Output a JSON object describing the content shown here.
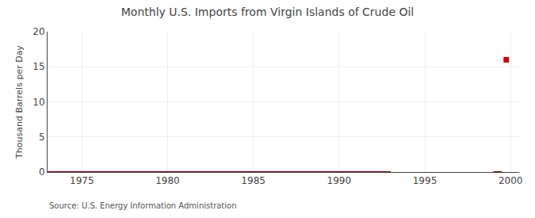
{
  "chart_data": {
    "type": "line",
    "title": "Monthly U.S. Imports from Virgin Islands of Crude Oil",
    "ylabel": "Thousand Barrels per Day",
    "annotations": [
      "Source: U.S. Energy Information Administration"
    ],
    "series": [
      {
        "x": [
          1973.0,
          1993.0
        ],
        "values": [
          0,
          0
        ],
        "color": "#8b0000"
      },
      {
        "x": [
          1999.0,
          1999.5
        ],
        "values": [
          0,
          0
        ],
        "color": "#8b0000"
      },
      {
        "x": [
          1999.75
        ],
        "values": [
          16
        ],
        "color": "#cc0000",
        "type": "scatter",
        "marker": "square"
      }
    ],
    "xlim": [
      1973.0,
      2000.5
    ],
    "xticks": [
      1975,
      1980,
      1985,
      1990,
      1995,
      2000
    ],
    "ylim": [
      0,
      20
    ],
    "yticks": [
      0,
      5,
      10,
      15,
      20
    ],
    "grid": true
  }
}
